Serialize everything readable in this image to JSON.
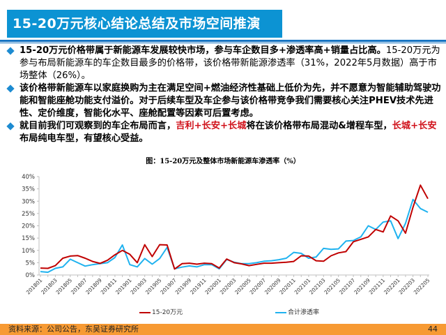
{
  "header": {
    "title": "15-20万元核心结论总结及市场空间推演"
  },
  "bullets": [
    {
      "bold": "15-20万元价格带属于新能源车发展较快市场，参与车企数目多+渗透率高+销量占比高。",
      "normal": "15-20万元为参与布局新能源车的车企数目最多的价格带，该价格带新能源渗透率（31%，2022年5月数据）高于市场整体（26%）。"
    },
    {
      "bold": "该价格带新能源车以家庭换购为主在满足空间+燃油经济性基础上低价为先，并不愿意为智能辅助驾驶功能和智能座舱功能支付溢价。对于后续车型及车企参与该价格带竞争我们需要核心关注PHEV技术先进性、定价维度，智能化水平、座舱配置等因素可后置考虑。"
    },
    {
      "part1": "就目前我们可观察到的车企布局而言，",
      "red1": "吉利+长安+长城",
      "part2": "将在该价格带布局混动&增程车型，",
      "red2": "长城+长安",
      "part3": "布局纯电车型，有望核心受益。"
    }
  ],
  "chart_title": "图：15-20万元及整体市场新能源车渗透率（%）",
  "footer": {
    "source": "资料来源：公司公告，东吴证券研究所",
    "page": "44"
  },
  "colors": {
    "title_bg": "#0c93d3",
    "rule": "#1674c2",
    "series_red": "#c00000",
    "series_blue": "#1fb2ef",
    "footer_bg": "#f79a33",
    "highlight_red": "#d0121b"
  },
  "chart_data": {
    "type": "line",
    "title": "图：15-20万元及整体市场新能源车渗透率（%）",
    "xlabel": "",
    "ylabel": "",
    "ylim": [
      0,
      40
    ],
    "yticks": [
      "0%",
      "5%",
      "10%",
      "15%",
      "20%",
      "25%",
      "30%",
      "35%",
      "40%"
    ],
    "grid": false,
    "legend_position": "bottom",
    "x": [
      "201801",
      "201802",
      "201803",
      "201804",
      "201805",
      "201806",
      "201807",
      "201808",
      "201809",
      "201810",
      "201811",
      "201812",
      "201901",
      "201902",
      "201903",
      "201904",
      "201905",
      "201906",
      "201907",
      "201908",
      "201909",
      "201910",
      "201911",
      "201912",
      "202001",
      "202002",
      "202003",
      "202004",
      "202005",
      "202006",
      "202007",
      "202008",
      "202009",
      "202010",
      "202011",
      "202012",
      "202101",
      "202102",
      "202103",
      "202104",
      "202105",
      "202106",
      "202107",
      "202108",
      "202109",
      "202110",
      "202111",
      "202112",
      "202201",
      "202202",
      "202203",
      "202204",
      "202205"
    ],
    "xtick_labels": [
      "201801",
      "201803",
      "201805",
      "201807",
      "201809",
      "201811",
      "201901",
      "201903",
      "201905",
      "201907",
      "201909",
      "201911",
      "202001",
      "202003",
      "202005",
      "202007",
      "202009",
      "202011",
      "202101",
      "202103",
      "202105",
      "202107",
      "202109",
      "202111",
      "202201",
      "202203",
      "202205"
    ],
    "series": [
      {
        "name": "15-20万元",
        "color": "#c00000",
        "values": [
          2.8,
          2.7,
          3.8,
          6.8,
          7.7,
          7.9,
          6.8,
          5.5,
          4.7,
          6.0,
          8.2,
          10.0,
          8.4,
          5.0,
          12.3,
          7.5,
          12.3,
          12.2,
          2.4,
          4.6,
          4.8,
          4.4,
          4.8,
          4.6,
          2.8,
          6.5,
          5.0,
          4.5,
          3.8,
          4.3,
          4.8,
          4.8,
          5.0,
          5.2,
          5.5,
          7.8,
          7.7,
          5.8,
          5.6,
          7.8,
          9.0,
          9.5,
          13.5,
          14.5,
          15.5,
          18.5,
          17.5,
          24.0,
          22.0,
          17.0,
          27.5,
          36.5,
          31.0
        ]
      },
      {
        "name": "合计渗透率",
        "color": "#1fb2ef",
        "values": [
          1.4,
          1.1,
          2.7,
          3.3,
          6.4,
          5.0,
          3.6,
          4.2,
          4.6,
          5.0,
          7.1,
          12.2,
          4.2,
          3.3,
          6.7,
          4.4,
          6.7,
          11.2,
          2.5,
          3.2,
          3.7,
          3.3,
          4.2,
          4.2,
          2.5,
          6.3,
          5.2,
          4.6,
          4.6,
          5.0,
          5.6,
          5.8,
          6.2,
          6.8,
          9.2,
          8.8,
          6.8,
          7.3,
          10.8,
          10.4,
          10.6,
          13.8,
          14.0,
          15.5,
          20.0,
          18.5,
          21.5,
          22.0,
          14.8,
          21.0,
          30.7,
          27.0,
          25.5
        ]
      }
    ]
  },
  "legend": [
    {
      "label": "15-20万元",
      "color": "#c00000"
    },
    {
      "label": "合计渗透率",
      "color": "#1fb2ef"
    }
  ]
}
